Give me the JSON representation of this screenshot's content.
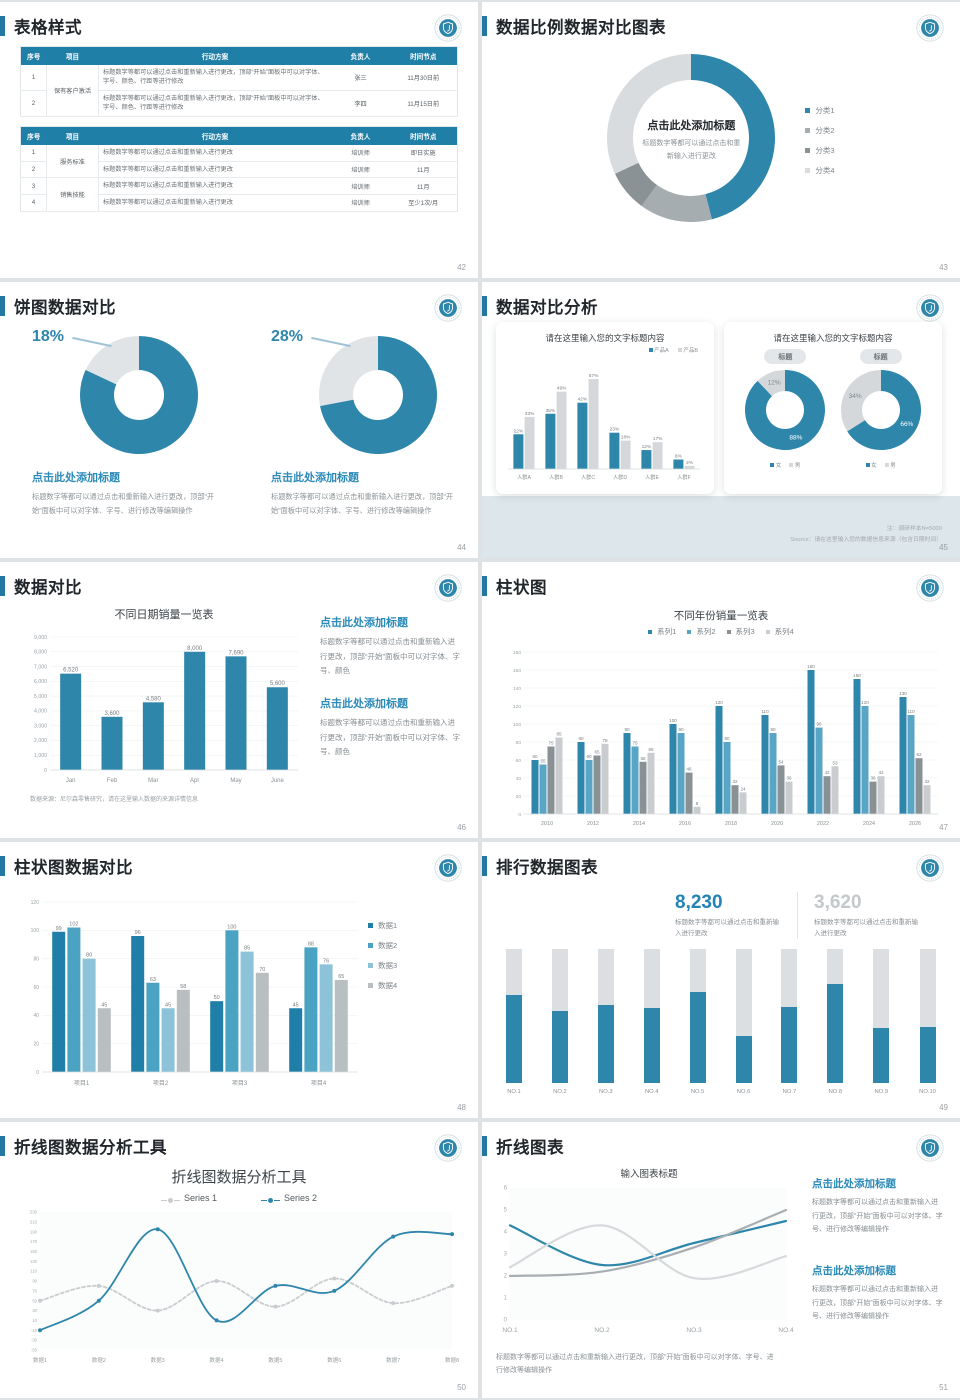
{
  "accent_color": "#2e86ab",
  "strings": {
    "click_title": "点击此处添加标题"
  },
  "slides": {
    "s42": {
      "title": "表格样式",
      "page": "42",
      "table1": {
        "headers": [
          "序号",
          "项目",
          "行动方案",
          "负责人",
          "时间节点"
        ],
        "groups": [
          {
            "project": "保有客户激活",
            "rows": [
              {
                "no": "1",
                "action": "标题数字等都可以通过点击和重新输入进行更改，顶部“开始”面板中可以对字体、字号、颜色、行距等进行修改",
                "owner": "张三",
                "time": "11月30日前"
              },
              {
                "no": "2",
                "action": "标题数字等都可以通过点击和重新输入进行更改，顶部“开始”面板中可以对字体、字号、颜色、行距等进行修改",
                "owner": "李四",
                "time": "11月15日前"
              }
            ]
          }
        ]
      },
      "table2": {
        "headers": [
          "序号",
          "项目",
          "行动方案",
          "负责人",
          "时间节点"
        ],
        "groups": [
          {
            "project": "服务标准",
            "rows": [
              {
                "no": "1",
                "action": "标题数字等都可以通过点击和重新输入进行更改",
                "owner": "培训师",
                "time": "即日实施"
              },
              {
                "no": "2",
                "action": "标题数字等都可以通过点击和重新输入进行更改",
                "owner": "培训师",
                "time": "11月"
              }
            ]
          },
          {
            "project": "销售技能",
            "rows": [
              {
                "no": "3",
                "action": "标题数字等都可以通过点击和重新输入进行更改",
                "owner": "培训师",
                "time": "11月"
              },
              {
                "no": "4",
                "action": "标题数字等都可以通过点击和重新输入进行更改",
                "owner": "培训师",
                "time": "至少1次/月"
              }
            ]
          }
        ]
      }
    },
    "s43": {
      "title": "数据比例数据对比图表",
      "page": "43",
      "center_title": "点击此处添加标题",
      "center_sub": "标题数字等都可以通过点击和重新输入进行更改"
    },
    "s44": {
      "title": "饼图数据对比",
      "page": "44",
      "left": {
        "heading": "点击此处添加标题",
        "body": "标题数字等都可以通过点击和重新输入进行更改，顶部“开始”面板中可以对字体、字号、进行修改等编辑操作"
      },
      "right": {
        "heading": "点击此处添加标题",
        "body": "标题数字等都可以通过点击和重新输入进行更改，顶部“开始”面板中可以对字体、字号、进行修改等编辑操作"
      }
    },
    "s45": {
      "title": "数据对比分析",
      "page": "45",
      "card1_title": "请在这里输入您的文字标题内容",
      "card2_title": "请在这里输入您的文字标题内容",
      "note1": "注：调研样本N=5000",
      "note2": "Source：请在这里输入您的数据信息来源（包含日期时间）"
    },
    "s46": {
      "title": "数据对比",
      "page": "46",
      "source": "数据来源：尼尔森零售研究，请在这里输入数据的来源详情信息",
      "blocks": [
        {
          "heading": "点击此处添加标题",
          "body": "标题数字等都可以通过点击和重新输入进行更改，顶部“开始”面板中可以对字体、字号、颜色"
        },
        {
          "heading": "点击此处添加标题",
          "body": "标题数字等都可以通过点击和重新输入进行更改，顶部“开始”面板中可以对字体、字号、颜色"
        }
      ]
    },
    "s47": {
      "title": "柱状图",
      "page": "47"
    },
    "s48": {
      "title": "柱状图数据对比",
      "page": "48"
    },
    "s49": {
      "title": "排行数据图表",
      "page": "49",
      "stats": [
        {
          "value": "8,230",
          "caption": "标题数字等都可以通过点击和重新输入进行更改",
          "color": "#2383b4"
        },
        {
          "value": "3,620",
          "caption": "标题数字等都可以通过点击和重新输入进行更改",
          "color": "#c3c8cb"
        }
      ]
    },
    "s50": {
      "title": "折线图数据分析工具",
      "page": "50"
    },
    "s51": {
      "title": "折线图表",
      "page": "51",
      "blocks": [
        {
          "heading": "点击此处添加标题",
          "body": "标题数字等都可以通过点击和重新输入进行更改，顶部“开始”面板中可以对字体、字号、进行修改等编辑操作"
        },
        {
          "heading": "点击此处添加标题",
          "body": "标题数字等都可以通过点击和重新输入进行更改，顶部“开始”面板中可以对字体、字号、进行修改等编辑操作"
        }
      ],
      "caption": "标题数字等都可以通过点击和重新输入进行更改，顶部“开始”面板中可以对字体、字号、进行修改等编辑操作"
    }
  },
  "chart_data": [
    {
      "id": "donut-43",
      "type": "pie",
      "labels": [
        "分类1",
        "分类2",
        "分类3",
        "分类4"
      ],
      "values": [
        46,
        14,
        8,
        32
      ],
      "colors": [
        "#2e86ab",
        "#a6adb0",
        "#8b9296",
        "#d9dcde"
      ],
      "legend_position": "right"
    },
    {
      "id": "donut-44a",
      "type": "pie",
      "values": [
        82,
        18
      ],
      "colors": [
        "#2e86ab",
        "#e0e4e6"
      ],
      "callout": "18%"
    },
    {
      "id": "donut-44b",
      "type": "pie",
      "values": [
        72,
        28
      ],
      "colors": [
        "#2e86ab",
        "#e0e4e6"
      ],
      "callout": "28%"
    },
    {
      "id": "bars-45",
      "type": "bar",
      "title": "请在这里输入您的文字标题内容",
      "categories": [
        "人群A",
        "人群B",
        "人群C",
        "人群D",
        "人群E",
        "人群F"
      ],
      "series": [
        {
          "name": "产品A",
          "color": "#2e86ab",
          "values": [
            22,
            35,
            42,
            23,
            12,
            6
          ]
        },
        {
          "name": "产品B",
          "color": "#d5d8da",
          "values": [
            33,
            49,
            57,
            18,
            17,
            2
          ]
        }
      ],
      "unit": "%",
      "ylim": [
        0,
        64
      ],
      "value_labels": true,
      "grid": false
    },
    {
      "id": "donut-45a",
      "type": "pie",
      "labels": [
        "女",
        "男"
      ],
      "values": [
        88,
        12
      ],
      "colors": [
        "#2e86ab",
        "#d5d8da"
      ],
      "value_labels": [
        "88%",
        "12%"
      ],
      "badge": "标题"
    },
    {
      "id": "donut-45b",
      "type": "pie",
      "labels": [
        "女",
        "男"
      ],
      "values": [
        66,
        34
      ],
      "colors": [
        "#2e86ab",
        "#d5d8da"
      ],
      "value_labels": [
        "66%",
        "34%"
      ],
      "badge": "标题"
    },
    {
      "id": "bars-46",
      "type": "bar",
      "title": "不同日期销量一览表",
      "categories": [
        "Jan",
        "Feb",
        "Mar",
        "Apr",
        "May",
        "June"
      ],
      "series": [
        {
          "name": "销量",
          "color": "#2e86ab",
          "values": [
            6520,
            3600,
            4580,
            8000,
            7690,
            5600
          ],
          "labels": [
            "6,520",
            "3,600",
            "4,580",
            "8,000",
            "7,690",
            "5,600"
          ]
        }
      ],
      "ylim": [
        0,
        9000
      ],
      "ytick": 1000,
      "grid": true
    },
    {
      "id": "bars-47",
      "type": "bar",
      "title": "不同年份销量一览表",
      "categories": [
        "2010",
        "2012",
        "2014",
        "2016",
        "2018",
        "2020",
        "2022",
        "2024",
        "2026"
      ],
      "series": [
        {
          "name": "系列1",
          "color": "#2e86ab",
          "values": [
            60,
            80,
            90,
            100,
            120,
            110,
            160,
            150,
            130
          ]
        },
        {
          "name": "系列2",
          "color": "#58a5c6",
          "values": [
            55,
            60,
            75,
            90,
            80,
            90,
            96,
            120,
            110
          ]
        },
        {
          "name": "系列3",
          "color": "#8a9195",
          "values": [
            75,
            65,
            58,
            46,
            32,
            54,
            42,
            36,
            62
          ]
        },
        {
          "name": "系列4",
          "color": "#c9cdd0",
          "values": [
            85,
            78,
            68,
            8,
            24,
            36,
            53,
            42,
            32
          ]
        }
      ],
      "ylim": [
        0,
        180
      ],
      "ytick": 20,
      "legend_position": "top",
      "value_labels": true,
      "grid": true
    },
    {
      "id": "bars-48",
      "type": "bar",
      "categories": [
        "项目1",
        "项目2",
        "项目3",
        "项目4"
      ],
      "series": [
        {
          "name": "数据1",
          "color": "#1f7fa8",
          "values": [
            99,
            96,
            50,
            45
          ]
        },
        {
          "name": "数据2",
          "color": "#4ba3c3",
          "values": [
            102,
            63,
            100,
            88
          ]
        },
        {
          "name": "数据3",
          "color": "#8cc3d9",
          "values": [
            80,
            45,
            85,
            76
          ]
        },
        {
          "name": "数据4",
          "color": "#b9bec1",
          "values": [
            45,
            58,
            70,
            65
          ]
        }
      ],
      "ylim": [
        0,
        120
      ],
      "ytick": 20,
      "legend_position": "right",
      "value_labels": true,
      "grid": true
    },
    {
      "id": "rank-49",
      "type": "bar",
      "categories": [
        "NO.1",
        "NO.2",
        "NO.3",
        "NO.4",
        "NO.5",
        "NO.6",
        "NO.7",
        "NO.8",
        "NO.9",
        "NO.10"
      ],
      "series": [
        {
          "name": "filled",
          "color": "#2e86ab",
          "values": [
            66,
            54,
            58,
            56,
            68,
            35,
            57,
            74,
            41,
            42
          ]
        },
        {
          "name": "track",
          "color": "#dcdfe1",
          "values": [
            100,
            100,
            100,
            100,
            100,
            100,
            100,
            100,
            100,
            100
          ]
        }
      ],
      "ylim": [
        0,
        100
      ]
    },
    {
      "id": "line-50",
      "type": "line",
      "title": "折线图数据分析工具",
      "x": [
        "数据1",
        "数据2",
        "数据3",
        "数据4",
        "数据5",
        "数据6",
        "数据7",
        "数据8"
      ],
      "series": [
        {
          "name": "Series 1",
          "color": "#c9cdd0",
          "dash": true,
          "values": [
            50,
            80,
            30,
            90,
            38,
            95,
            45,
            80
          ]
        },
        {
          "name": "Series 2",
          "color": "#2e86ab",
          "dash": false,
          "values": [
            -10,
            50,
            195,
            10,
            80,
            70,
            180,
            185
          ]
        }
      ],
      "ylim": [
        -50,
        230
      ],
      "ytick": 20,
      "legend_position": "top"
    },
    {
      "id": "line-51",
      "type": "line",
      "title": "输入图表标题",
      "x": [
        "NO.1",
        "NO.2",
        "NO.3",
        "NO.4"
      ],
      "series": [
        {
          "name": "series-blue",
          "color": "#2e86ab",
          "values": [
            4.3,
            2.5,
            3.5,
            4.5
          ]
        },
        {
          "name": "series-gray-dark",
          "color": "#a9aeb2",
          "values": [
            2.0,
            2.2,
            3.3,
            5.0
          ]
        },
        {
          "name": "series-gray-light",
          "color": "#d6dadc",
          "values": [
            2.4,
            4.3,
            1.9,
            2.9
          ]
        }
      ],
      "ylim": [
        0,
        6
      ],
      "ytick": 1
    }
  ]
}
